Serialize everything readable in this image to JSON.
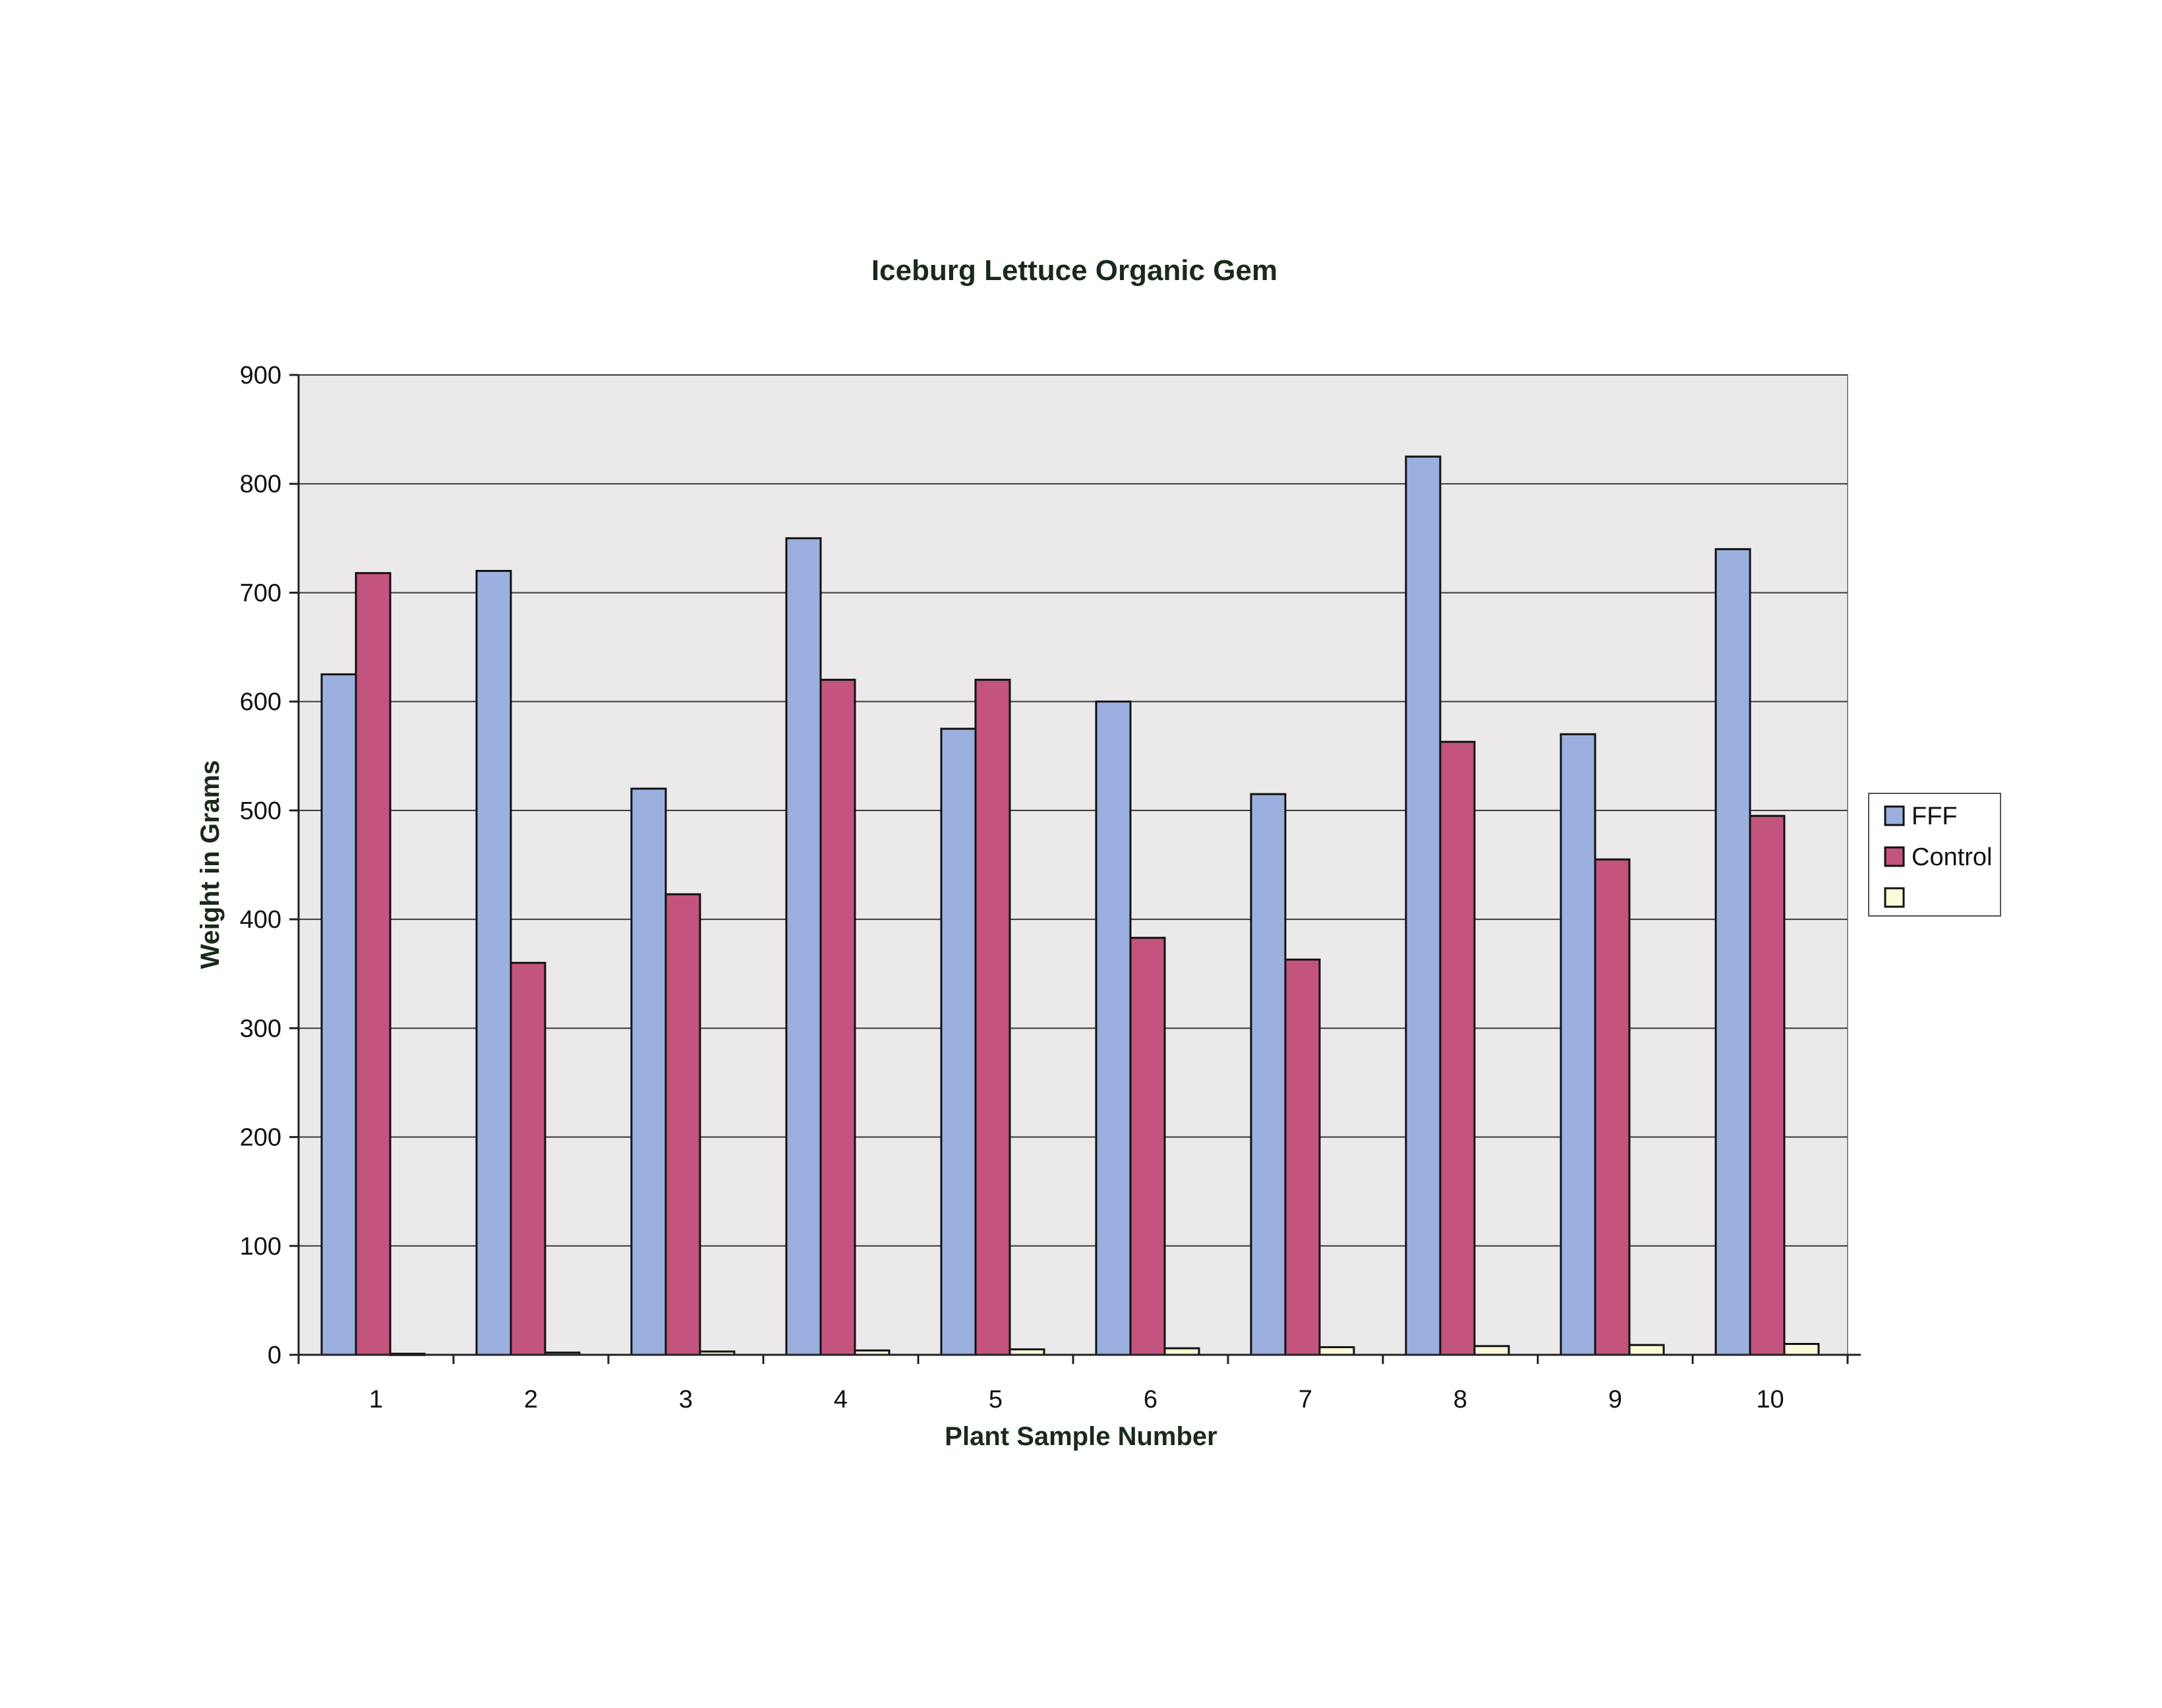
{
  "chart_data": {
    "type": "bar",
    "title": "Iceburg Lettuce Organic Gem",
    "xlabel": "Plant Sample Number",
    "ylabel": "Weight in Grams",
    "categories": [
      "1",
      "2",
      "3",
      "4",
      "5",
      "6",
      "7",
      "8",
      "9",
      "10"
    ],
    "ylim": [
      0,
      900
    ],
    "yticks": [
      0,
      100,
      200,
      300,
      400,
      500,
      600,
      700,
      800,
      900
    ],
    "grid": true,
    "legend_position": "right",
    "series": [
      {
        "name": "FFF",
        "color": "#9bb0df",
        "values": [
          625,
          720,
          520,
          750,
          575,
          600,
          515,
          825,
          570,
          740
        ]
      },
      {
        "name": "Control",
        "color": "#c2547d",
        "values": [
          718,
          360,
          423,
          620,
          620,
          383,
          363,
          563,
          455,
          495
        ]
      },
      {
        "name": "",
        "color": "#fbfad8",
        "values": [
          1,
          2,
          3,
          4,
          5,
          6,
          7,
          8,
          9,
          10
        ]
      }
    ],
    "plot_background": "#ebe9ea",
    "gridline_color": "#3a3a3a",
    "bar_outline_color": "#111111"
  }
}
